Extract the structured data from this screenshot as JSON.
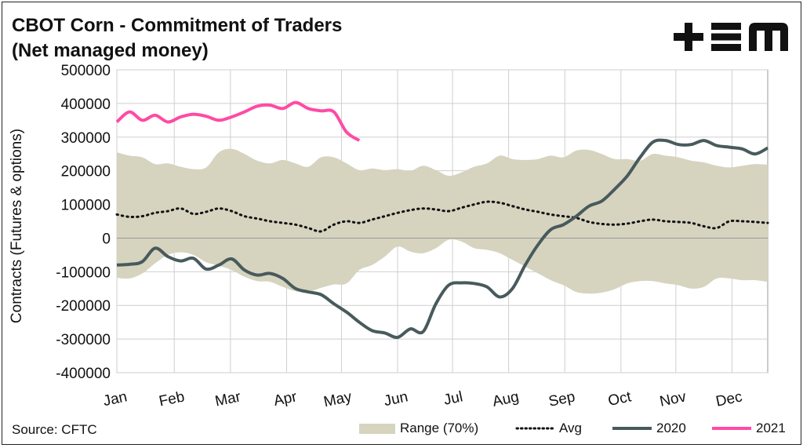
{
  "header": {
    "title_line1": "CBOT Corn - Commitment of Traders",
    "title_line2": "(Net managed money)"
  },
  "logo": {
    "text": "+EM",
    "icon": "tem-logo-icon",
    "color": "#111111"
  },
  "footer": {
    "source": "Source: CFTC"
  },
  "colors": {
    "range": "#d6d4bf",
    "avg": "#111111",
    "s2020": "#485a5c",
    "s2021": "#ff4aa5",
    "grid": "#cfcfcf"
  },
  "chart_data": {
    "type": "line",
    "ylabel": "Contracts (Futures & options)",
    "ylim": [
      -400000,
      500000
    ],
    "yticks": [
      500000,
      400000,
      300000,
      200000,
      100000,
      0,
      -100000,
      -200000,
      -300000,
      -400000
    ],
    "ytick_labels": [
      "500000",
      "400000",
      "300000",
      "200000",
      "100000",
      "0",
      "-100000",
      "-200000",
      "-300000",
      "-400000"
    ],
    "xlim": [
      1,
      52
    ],
    "months": [
      {
        "label": "Jan",
        "week": 1
      },
      {
        "label": "Feb",
        "week": 5.5
      },
      {
        "label": "Mar",
        "week": 9.9
      },
      {
        "label": "Apr",
        "week": 14.3
      },
      {
        "label": "May",
        "week": 18.6
      },
      {
        "label": "Jun",
        "week": 23
      },
      {
        "label": "Jul",
        "week": 27.3
      },
      {
        "label": "Aug",
        "week": 31.7
      },
      {
        "label": "Sep",
        "week": 36.1
      },
      {
        "label": "Oct",
        "week": 40.5
      },
      {
        "label": "Nov",
        "week": 44.8
      },
      {
        "label": "Dec",
        "week": 49.2
      }
    ],
    "legend_placement": "bottom",
    "series": [
      {
        "name": "Range (70%)",
        "kind": "band",
        "x": [
          1,
          2,
          3,
          4,
          5,
          6,
          7,
          8,
          9,
          10,
          11,
          12,
          13,
          14,
          15,
          16,
          17,
          18,
          19,
          20,
          21,
          22,
          23,
          24,
          25,
          26,
          27,
          28,
          29,
          30,
          31,
          32,
          33,
          34,
          35,
          36,
          37,
          38,
          39,
          40,
          41,
          42,
          43,
          44,
          45,
          46,
          47,
          48,
          49,
          50,
          51,
          52
        ],
        "upper": [
          255000,
          245000,
          240000,
          220000,
          222000,
          212000,
          205000,
          210000,
          255000,
          265000,
          250000,
          230000,
          222000,
          232000,
          222000,
          212000,
          240000,
          240000,
          222000,
          202000,
          207000,
          202000,
          205000,
          200000,
          215000,
          202000,
          185000,
          195000,
          212000,
          222000,
          245000,
          235000,
          232000,
          235000,
          245000,
          240000,
          260000,
          262000,
          250000,
          235000,
          235000,
          230000,
          250000,
          245000,
          240000,
          230000,
          225000,
          215000,
          210000,
          215000,
          220000,
          218000
        ],
        "lower": [
          -118000,
          -120000,
          -105000,
          -75000,
          -50000,
          -42000,
          -50000,
          -72000,
          -82000,
          -95000,
          -115000,
          -128000,
          -130000,
          -145000,
          -158000,
          -160000,
          -148000,
          -138000,
          -135000,
          -95000,
          -80000,
          -55000,
          -25000,
          -40000,
          -45000,
          -30000,
          -5000,
          -10000,
          -30000,
          -35000,
          -45000,
          -65000,
          -85000,
          -105000,
          -125000,
          -140000,
          -160000,
          -165000,
          -162000,
          -152000,
          -135000,
          -128000,
          -128000,
          -135000,
          -140000,
          -150000,
          -145000,
          -120000,
          -120000,
          -125000,
          -125000,
          -130000
        ]
      },
      {
        "name": "Avg",
        "kind": "line",
        "x": [
          1,
          2,
          3,
          4,
          5,
          6,
          7,
          8,
          9,
          10,
          11,
          12,
          13,
          14,
          15,
          16,
          17,
          18,
          19,
          20,
          21,
          22,
          23,
          24,
          25,
          26,
          27,
          28,
          29,
          30,
          31,
          32,
          33,
          34,
          35,
          36,
          37,
          38,
          39,
          40,
          41,
          42,
          43,
          44,
          45,
          46,
          47,
          48,
          49,
          50,
          51,
          52
        ],
        "values": [
          70000,
          63000,
          65000,
          75000,
          80000,
          88000,
          72000,
          78000,
          88000,
          80000,
          65000,
          58000,
          50000,
          45000,
          40000,
          30000,
          20000,
          40000,
          50000,
          45000,
          55000,
          65000,
          75000,
          83000,
          88000,
          85000,
          80000,
          90000,
          100000,
          108000,
          105000,
          95000,
          85000,
          78000,
          70000,
          65000,
          60000,
          48000,
          42000,
          40000,
          43000,
          50000,
          55000,
          50000,
          48000,
          45000,
          35000,
          30000,
          50000,
          50000,
          48000,
          45000
        ]
      },
      {
        "name": "2020",
        "kind": "line",
        "x": [
          1,
          2,
          3,
          4,
          5,
          6,
          7,
          8,
          9,
          10,
          11,
          12,
          13,
          14,
          15,
          16,
          17,
          18,
          19,
          20,
          21,
          22,
          23,
          24,
          25,
          26,
          27,
          28,
          29,
          30,
          31,
          32,
          33,
          34,
          35,
          36,
          37,
          38,
          39,
          40,
          41,
          42,
          43,
          44,
          45,
          46,
          47,
          48,
          49,
          50,
          51,
          52
        ],
        "values": [
          -80000,
          -78000,
          -70000,
          -30000,
          -55000,
          -68000,
          -60000,
          -92000,
          -80000,
          -62000,
          -95000,
          -110000,
          -105000,
          -120000,
          -150000,
          -160000,
          -168000,
          -195000,
          -220000,
          -250000,
          -275000,
          -282000,
          -295000,
          -270000,
          -278000,
          -195000,
          -140000,
          -133000,
          -135000,
          -145000,
          -175000,
          -150000,
          -80000,
          -20000,
          25000,
          40000,
          65000,
          95000,
          110000,
          145000,
          185000,
          240000,
          285000,
          290000,
          278000,
          278000,
          290000,
          275000,
          270000,
          265000,
          250000,
          268000
        ]
      },
      {
        "name": "2021",
        "kind": "line",
        "x": [
          1,
          2,
          3,
          4,
          5,
          6,
          7,
          8,
          9,
          10,
          11,
          12,
          13,
          14,
          15,
          16,
          17,
          18,
          19,
          20
        ],
        "values": [
          345000,
          375000,
          350000,
          365000,
          345000,
          360000,
          368000,
          362000,
          350000,
          360000,
          375000,
          392000,
          395000,
          385000,
          403000,
          385000,
          378000,
          375000,
          315000,
          290000
        ]
      }
    ]
  },
  "legend": {
    "items": [
      {
        "label": "Range (70%)"
      },
      {
        "label": "Avg"
      },
      {
        "label": "2020"
      },
      {
        "label": "2021"
      }
    ]
  }
}
